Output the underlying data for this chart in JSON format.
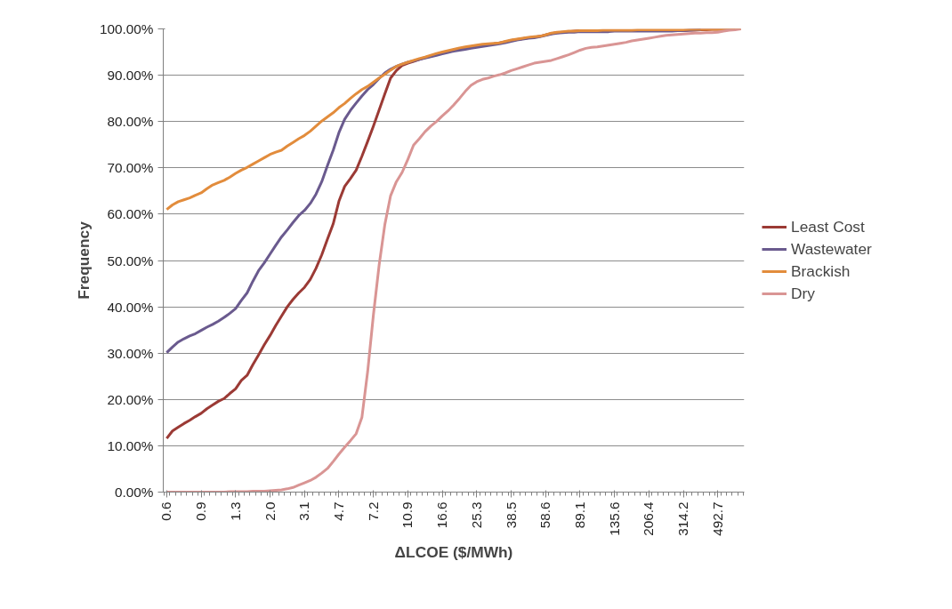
{
  "chart_data": {
    "type": "line",
    "xlabel": "ΔLCOE ($/MWh)",
    "ylabel": "Frequency",
    "categories": [
      "0.6",
      null,
      null,
      null,
      null,
      null,
      "0.9",
      null,
      null,
      null,
      null,
      null,
      "1.3",
      null,
      null,
      null,
      null,
      null,
      "2.0",
      null,
      null,
      null,
      null,
      null,
      "3.1",
      null,
      null,
      null,
      null,
      null,
      "4.7",
      null,
      null,
      null,
      null,
      null,
      "7.2",
      null,
      null,
      null,
      null,
      null,
      "10.9",
      null,
      null,
      null,
      null,
      null,
      "16.6",
      null,
      null,
      null,
      null,
      null,
      "25.3",
      null,
      null,
      null,
      null,
      null,
      "38.5",
      null,
      null,
      null,
      null,
      null,
      "58.6",
      null,
      null,
      null,
      null,
      null,
      "89.1",
      null,
      null,
      null,
      null,
      null,
      "135.6",
      null,
      null,
      null,
      null,
      null,
      "206.4",
      null,
      null,
      null,
      null,
      null,
      "314.2",
      null,
      null,
      null,
      null,
      null,
      "492.7",
      null,
      null,
      null,
      null
    ],
    "ylim": [
      0,
      100
    ],
    "yticks": [
      {
        "value": 0,
        "label": "0.00%"
      },
      {
        "value": 10,
        "label": "10.00%"
      },
      {
        "value": 20,
        "label": "20.00%"
      },
      {
        "value": 30,
        "label": "30.00%"
      },
      {
        "value": 40,
        "label": "40.00%"
      },
      {
        "value": 50,
        "label": "50.00%"
      },
      {
        "value": 60,
        "label": "60.00%"
      },
      {
        "value": 70,
        "label": "70.00%"
      },
      {
        "value": 80,
        "label": "80.00%"
      },
      {
        "value": 90,
        "label": "90.00%"
      },
      {
        "value": 100,
        "label": "100.00%"
      }
    ],
    "grid": "y",
    "legend": "right",
    "line_style": "solid",
    "series": [
      {
        "name": "Least Cost",
        "color": "#9b3a35",
        "values": [
          11.6,
          13.2,
          14.0,
          14.8,
          15.5,
          16.3,
          17.0,
          18.0,
          18.8,
          19.6,
          20.2,
          21.3,
          22.3,
          24.1,
          25.2,
          27.5,
          29.6,
          31.8,
          33.8,
          36.0,
          38.0,
          40.0,
          41.6,
          43.0,
          44.2,
          45.9,
          48.3,
          51.2,
          54.6,
          57.9,
          62.8,
          66.0,
          67.7,
          69.5,
          72.5,
          75.7,
          79.0,
          82.5,
          86.0,
          89.4,
          91.0,
          92.1,
          92.6,
          93.0,
          93.4,
          93.8,
          94.1,
          94.5,
          94.8,
          95.1,
          95.4,
          95.7,
          95.9,
          96.1,
          96.3,
          96.5,
          96.7,
          96.8,
          97.0,
          97.2,
          97.5,
          97.7,
          97.9,
          98.1,
          98.2,
          98.4,
          98.7,
          99.0,
          99.2,
          99.3,
          99.4,
          99.5,
          99.6,
          99.6,
          99.6,
          99.6,
          99.6,
          99.6,
          99.6,
          99.6,
          99.6,
          99.6,
          99.6,
          99.6,
          99.6,
          99.6,
          99.6,
          99.6,
          99.6,
          99.6,
          99.6,
          99.7,
          99.7,
          99.8,
          99.8,
          99.9,
          99.9,
          99.9,
          100,
          100,
          100
        ]
      },
      {
        "name": "Wastewater",
        "color": "#6a5a8e",
        "values": [
          30.1,
          31.3,
          32.4,
          33.1,
          33.7,
          34.2,
          34.9,
          35.6,
          36.2,
          36.9,
          37.7,
          38.6,
          39.6,
          41.4,
          43.0,
          45.5,
          47.8,
          49.5,
          51.4,
          53.3,
          55.1,
          56.6,
          58.2,
          59.7,
          60.8,
          62.3,
          64.3,
          67.0,
          70.5,
          73.8,
          77.6,
          80.5,
          82.4,
          84.0,
          85.5,
          86.9,
          88.0,
          89.3,
          90.5,
          91.3,
          91.9,
          92.4,
          92.8,
          93.1,
          93.4,
          93.7,
          94.0,
          94.3,
          94.6,
          94.9,
          95.2,
          95.4,
          95.6,
          95.8,
          96.0,
          96.2,
          96.4,
          96.6,
          96.8,
          97.0,
          97.3,
          97.6,
          97.8,
          98.0,
          98.1,
          98.3,
          98.6,
          98.9,
          99.1,
          99.2,
          99.3,
          99.3,
          99.4,
          99.4,
          99.4,
          99.4,
          99.4,
          99.4,
          99.5,
          99.5,
          99.5,
          99.5,
          99.5,
          99.5,
          99.5,
          99.5,
          99.5,
          99.5,
          99.5,
          99.6,
          99.6,
          99.7,
          99.8,
          99.8,
          null,
          null,
          null,
          null,
          null,
          null,
          null
        ]
      },
      {
        "name": "Brackish",
        "color": "#e28c3c",
        "values": [
          61.0,
          62.0,
          62.7,
          63.1,
          63.5,
          64.1,
          64.6,
          65.5,
          66.3,
          66.8,
          67.3,
          68.0,
          68.8,
          69.5,
          70.1,
          70.8,
          71.5,
          72.2,
          72.9,
          73.4,
          73.8,
          74.7,
          75.5,
          76.3,
          77.0,
          77.9,
          79.0,
          80.1,
          81.0,
          81.9,
          83.0,
          83.9,
          85.0,
          86.0,
          86.9,
          87.6,
          88.5,
          89.4,
          90.2,
          91.1,
          91.9,
          92.4,
          92.8,
          93.2,
          93.6,
          93.9,
          94.3,
          94.7,
          95.0,
          95.3,
          95.6,
          95.9,
          96.1,
          96.3,
          96.5,
          96.7,
          96.8,
          96.9,
          97.0,
          97.3,
          97.6,
          97.8,
          98.0,
          98.2,
          98.3,
          98.4,
          98.7,
          99.1,
          99.3,
          99.4,
          99.5,
          99.5,
          99.6,
          99.6,
          99.6,
          99.6,
          99.7,
          99.7,
          99.7,
          99.7,
          99.7,
          99.7,
          99.8,
          99.8,
          99.8,
          99.8,
          99.8,
          99.8,
          99.8,
          99.8,
          99.8,
          99.9,
          99.9,
          99.9,
          99.9,
          99.9,
          99.9,
          99.9,
          99.9,
          100,
          100
        ]
      },
      {
        "name": "Dry",
        "color": "#d99594",
        "values": [
          0.0,
          0.0,
          0.0,
          0.0,
          0.0,
          0.0,
          0.0,
          0.0,
          0.0,
          0.0,
          0.0,
          0.1,
          0.1,
          0.1,
          0.1,
          0.2,
          0.2,
          0.2,
          0.3,
          0.4,
          0.5,
          0.7,
          1.0,
          1.5,
          2.0,
          2.5,
          3.2,
          4.1,
          5.1,
          6.6,
          8.2,
          9.7,
          11.1,
          12.6,
          16.1,
          26.0,
          38.2,
          49.0,
          57.8,
          64.0,
          67.0,
          69.0,
          71.8,
          74.9,
          76.3,
          77.8,
          79.0,
          80.0,
          81.2,
          82.3,
          83.6,
          85.0,
          86.5,
          87.8,
          88.6,
          89.1,
          89.4,
          89.8,
          90.1,
          90.5,
          91.0,
          91.4,
          91.8,
          92.2,
          92.6,
          92.8,
          93.0,
          93.2,
          93.6,
          94.0,
          94.4,
          94.9,
          95.4,
          95.8,
          96.0,
          96.1,
          96.3,
          96.5,
          96.7,
          96.9,
          97.1,
          97.4,
          97.6,
          97.8,
          98.0,
          98.2,
          98.4,
          98.6,
          98.7,
          98.8,
          98.9,
          99.0,
          99.1,
          99.1,
          99.2,
          99.2,
          99.3,
          99.5,
          99.7,
          99.8,
          100
        ]
      }
    ]
  }
}
